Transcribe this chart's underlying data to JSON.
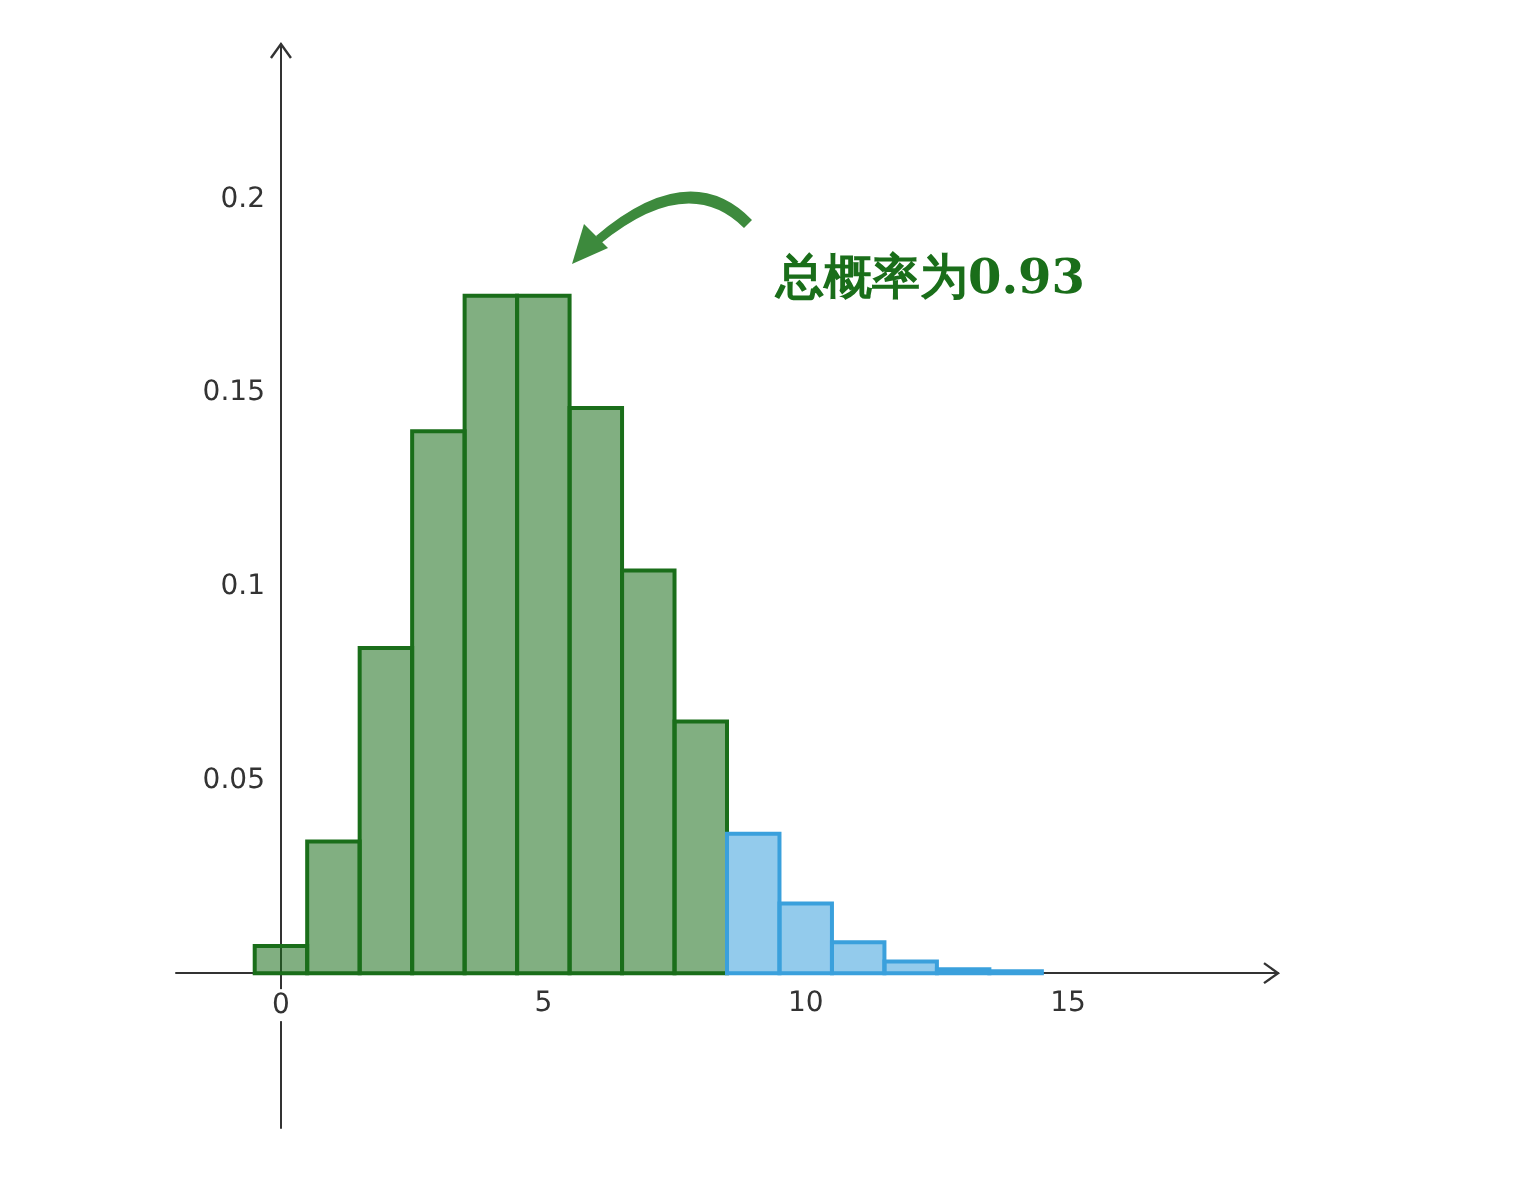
{
  "chart_data": {
    "type": "histogram",
    "bins": [
      -0.5,
      0.5,
      1.5,
      2.5,
      3.5,
      4.5,
      5.5,
      6.5,
      7.5,
      8.5,
      9.5,
      10.5,
      11.5,
      12.5,
      13.5,
      14.5
    ],
    "values": [
      0.007,
      0.034,
      0.084,
      0.14,
      0.175,
      0.175,
      0.146,
      0.104,
      0.065,
      0.036,
      0.018,
      0.008,
      0.003,
      0.001,
      0.0005
    ],
    "colors": [
      "#1a6e1a",
      "#1a6e1a",
      "#1a6e1a",
      "#1a6e1a",
      "#1a6e1a",
      "#1a6e1a",
      "#1a6e1a",
      "#1a6e1a",
      "#1a6e1a",
      "#3aa0dc",
      "#3aa0dc",
      "#3aa0dc",
      "#3aa0dc",
      "#3aa0dc",
      "#3aa0dc"
    ],
    "xlim": [
      -2,
      19
    ],
    "xticks": [
      0,
      5,
      10,
      15
    ],
    "ylim": [
      -0.04,
      0.24
    ],
    "yticks": [
      0.05,
      0.1,
      0.15,
      0.2
    ],
    "grid": false,
    "annotations": [
      "总概率为0.93"
    ]
  }
}
